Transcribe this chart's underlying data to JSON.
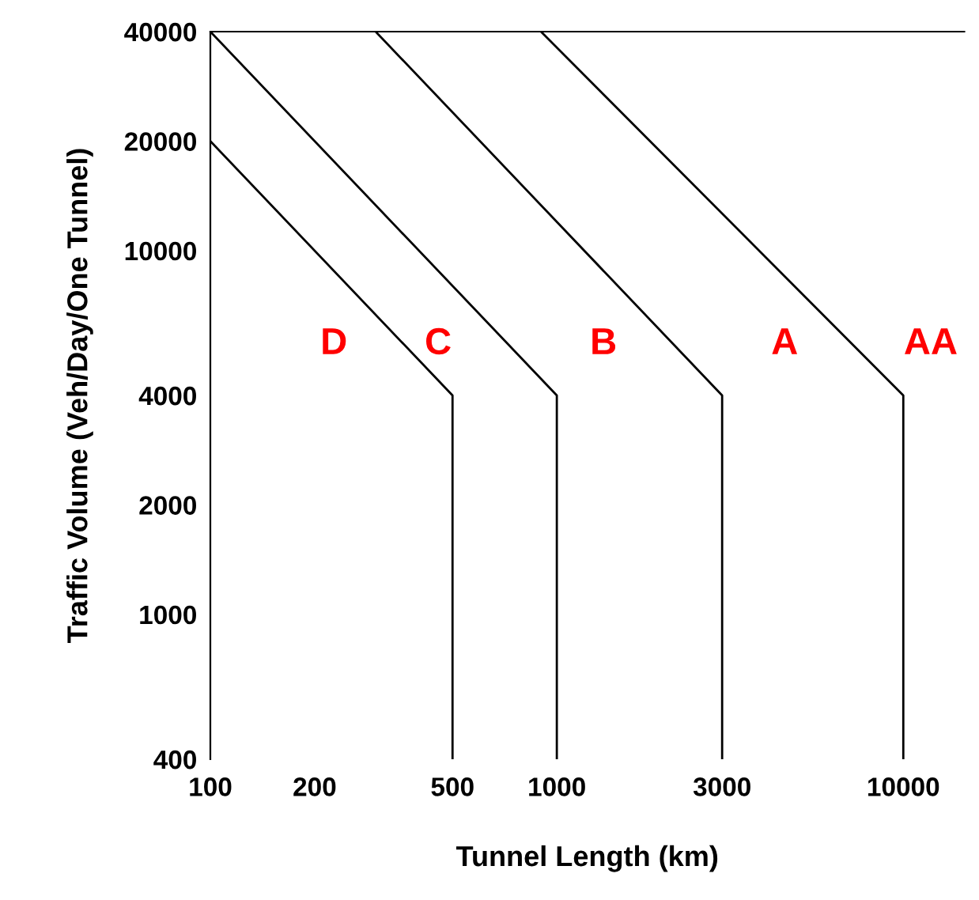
{
  "chart_data": {
    "type": "line",
    "xlabel": "Tunnel Length (km)",
    "ylabel": "Traffic Volume (Veh/Day/One Tunnel)",
    "log": "xy",
    "xlim": [
      100,
      15000
    ],
    "ylim": [
      400,
      40000
    ],
    "xticks": [
      100,
      200,
      500,
      1000,
      3000,
      10000
    ],
    "yticks": [
      400,
      1000,
      2000,
      4000,
      10000,
      20000,
      40000
    ],
    "grid": false,
    "marker": "none",
    "line_style": "solid",
    "legend": false,
    "series": [
      {
        "color": "#000000",
        "x": [
          500,
          500,
          100
        ],
        "values": [
          400,
          4000,
          20000
        ]
      },
      {
        "color": "#000000",
        "x": [
          1000,
          1000,
          100
        ],
        "values": [
          400,
          4000,
          40000
        ]
      },
      {
        "color": "#000000",
        "x": [
          3000,
          3000,
          300
        ],
        "values": [
          400,
          4000,
          40000
        ]
      },
      {
        "color": "#000000",
        "x": [
          10000,
          10000,
          900
        ],
        "values": [
          400,
          4000,
          40000
        ]
      }
    ],
    "annotations": [
      "D",
      "C",
      "B",
      "A",
      "AA"
    ]
  }
}
